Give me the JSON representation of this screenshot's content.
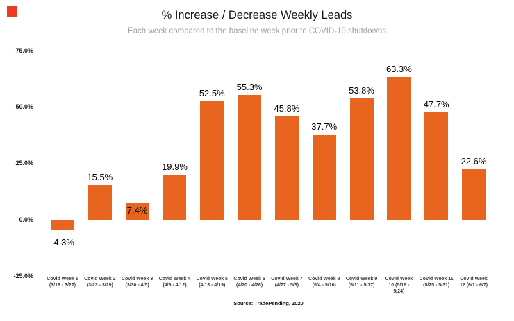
{
  "logo": {
    "color": "#EE3B23"
  },
  "chart_data": {
    "type": "bar",
    "title": "% Increase / Decrease Weekly Leads",
    "subtitle": "Each week compared to the baseline week prior to COVID-19 shutdowns",
    "source": "Source: TradePending, 2020",
    "categories": [
      "Covid Week 1 (3/16 - 3/22)",
      "Covid Week 2 (3/23 - 3/29)",
      "Covid Week 3 (3/30 - 4/5)",
      "Covid Week 4 (4/6 - 4/12)",
      "Covid Week 5 (4/13 - 4/19)",
      "Covid Week 6 (4/20 - 4/26)",
      "Covid Week 7 (4/27 - 5/3)",
      "Covid Week 8 (5/4 - 5/10)",
      "Covid Week 9 (5/11 - 5/17)",
      "Covid Week 10 (5/18 - 5/24)",
      "Covid Week 11 (5/25 - 5/31)",
      "Covid Week 12 (6/1 - 6/7)"
    ],
    "category_label_lines": [
      [
        "Covid Week 1",
        "(3/16 - 3/22)"
      ],
      [
        "Covid Week 2",
        "(3/23 - 3/29)"
      ],
      [
        "Covid Week 3",
        "(3/30 - 4/5)"
      ],
      [
        "Covid Week 4",
        "(4/6 - 4/12)"
      ],
      [
        "Covid Week 5",
        "(4/13 - 4/19)"
      ],
      [
        "Covid Week 6",
        "(4/20 - 4/26)"
      ],
      [
        "Covid Week 7",
        "(4/27 - 5/3)"
      ],
      [
        "Covid Week 8",
        "(5/4 - 5/10)"
      ],
      [
        "Covid Week 9",
        "(5/11 - 5/17)"
      ],
      [
        "Covid Week",
        "10 (5/18 -",
        "5/24)"
      ],
      [
        "Covid Week 11",
        "(5/25 - 5/31)"
      ],
      [
        "Covid Week",
        "12 (6/1 - 6/7)"
      ]
    ],
    "values": [
      -4.3,
      15.5,
      7.4,
      19.9,
      52.5,
      55.3,
      45.8,
      37.7,
      53.8,
      63.3,
      47.7,
      22.6
    ],
    "value_labels": [
      "-4.3%",
      "15.5%",
      "7.4%",
      "19.9%",
      "52.5%",
      "55.3%",
      "45.8%",
      "37.7%",
      "53.8%",
      "63.3%",
      "47.7%",
      "22.6%"
    ],
    "value_label_positions": [
      "below",
      "above",
      "inside",
      "above",
      "above",
      "above",
      "above",
      "above",
      "above",
      "above",
      "above",
      "above"
    ],
    "y_axis": {
      "range": [
        -25,
        75
      ],
      "ticks": [
        {
          "value": 75,
          "label": "75.0%"
        },
        {
          "value": 50,
          "label": "50.0%"
        },
        {
          "value": 25,
          "label": "25.0%"
        },
        {
          "value": 0,
          "label": "0.0%"
        },
        {
          "value": -25,
          "label": "-25.0%"
        }
      ]
    },
    "grid": true,
    "legend": "none",
    "bar_color": "#E8651F",
    "grid_color": "#DADADA",
    "axis_line_color": "#333333",
    "value_label_color": "#000000",
    "tick_label_color": "#1a1a1a",
    "category_label_color": "#3a3a3a",
    "subtitle_color": "#9E9E9E"
  }
}
